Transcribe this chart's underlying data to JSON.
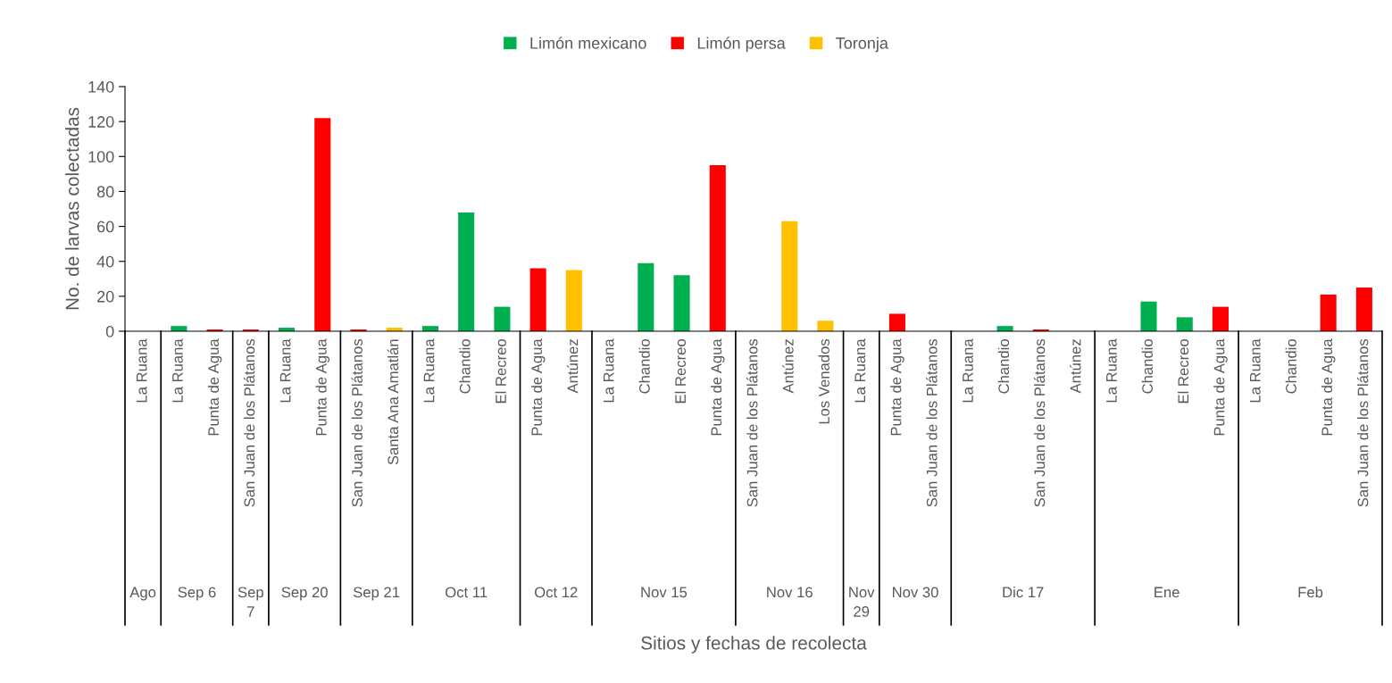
{
  "chart_data": {
    "type": "bar",
    "ylabel": "No. de larvas colectadas",
    "categories": [
      "La Ruana",
      "La Ruana",
      "Punta de Agua",
      "San Juan de los Plátanos",
      "La Ruana",
      "Punta de Agua",
      "San Juan de los Plátanos",
      "Santa Ana Amatlán",
      "La Ruana",
      "Chandio",
      "El Recreo",
      "Punta de Agua",
      "Antúnez",
      "La Ruana",
      "Chandio",
      "El Recreo",
      "Punta de Agua",
      "San Juan de los Plátanos",
      "Antúnez",
      "Los Venados",
      "La Ruana",
      "Punta de Agua",
      "San Juan de los Plátanos",
      "La Ruana",
      "Chandio",
      "San Juan de los Plátanos",
      "Antúnez",
      "La Ruana",
      "Chandio",
      "El Recreo",
      "Punta de Agua",
      "La Ruana",
      "Chandio",
      "Punta de Agua",
      "San Juan de los Plátanos"
    ],
    "series": [
      {
        "name": "Limón mexicano",
        "color": "#00b050",
        "values": [
          null,
          3,
          null,
          null,
          2,
          null,
          null,
          null,
          3,
          68,
          14,
          null,
          null,
          null,
          39,
          32,
          null,
          null,
          null,
          null,
          null,
          null,
          null,
          null,
          3,
          null,
          null,
          null,
          17,
          8,
          null,
          null,
          null,
          null,
          null
        ]
      },
      {
        "name": "Limón persa",
        "color": "#ff0000",
        "values": [
          null,
          null,
          1,
          1,
          null,
          122,
          1,
          null,
          null,
          null,
          null,
          36,
          null,
          null,
          null,
          null,
          95,
          null,
          null,
          null,
          null,
          10,
          null,
          null,
          null,
          1,
          null,
          null,
          null,
          null,
          14,
          null,
          null,
          21,
          25
        ]
      },
      {
        "name": "Toronja",
        "color": "#ffc000",
        "values": [
          null,
          null,
          null,
          null,
          null,
          null,
          null,
          2,
          null,
          null,
          null,
          null,
          35,
          null,
          null,
          null,
          null,
          null,
          63,
          6,
          null,
          null,
          null,
          null,
          null,
          null,
          null,
          null,
          null,
          null,
          null,
          null,
          null,
          null,
          null
        ]
      }
    ],
    "ylim": [
      0,
      140
    ],
    "yticks": [
      0,
      20,
      40,
      60,
      80,
      100,
      120,
      140
    ],
    "grid": false,
    "legend": "top",
    "annotations": [
      "Ago",
      "Sep 6",
      "Sep 7",
      "Sep 20",
      "Sep 21",
      "Oct 11",
      "Oct 12",
      "Nov 15",
      "Nov 16",
      "Nov 29",
      "Nov 30",
      "Dic 17",
      "Ene",
      "Feb",
      "Sitios y fechas de recolecta"
    ]
  }
}
